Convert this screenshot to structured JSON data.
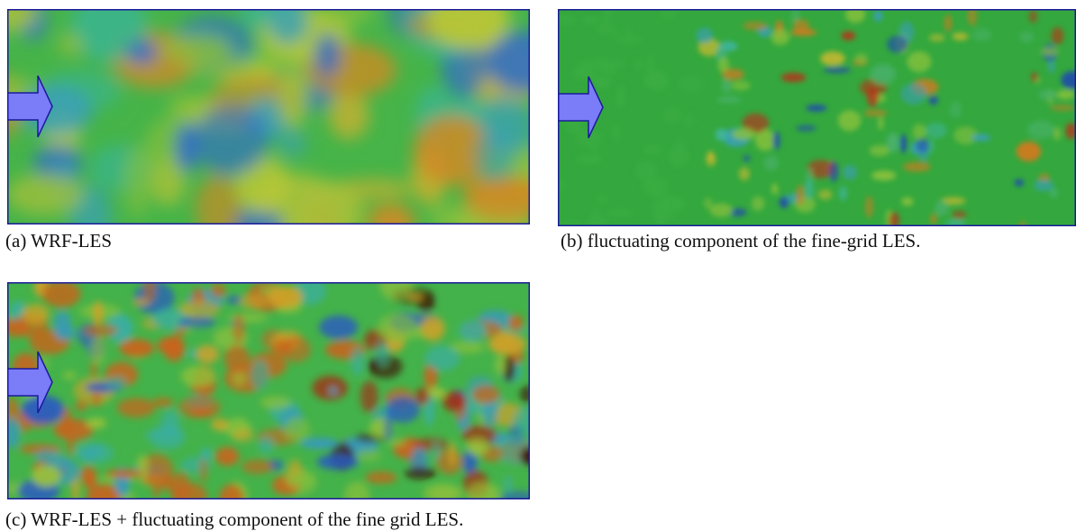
{
  "figure": {
    "panels": [
      {
        "caption": "(a) WRF-LES"
      },
      {
        "caption": "(b) fluctuating component of the fine-grid LES."
      },
      {
        "caption": "(c) WRF-LES + fluctuating component of the fine grid LES."
      }
    ]
  }
}
